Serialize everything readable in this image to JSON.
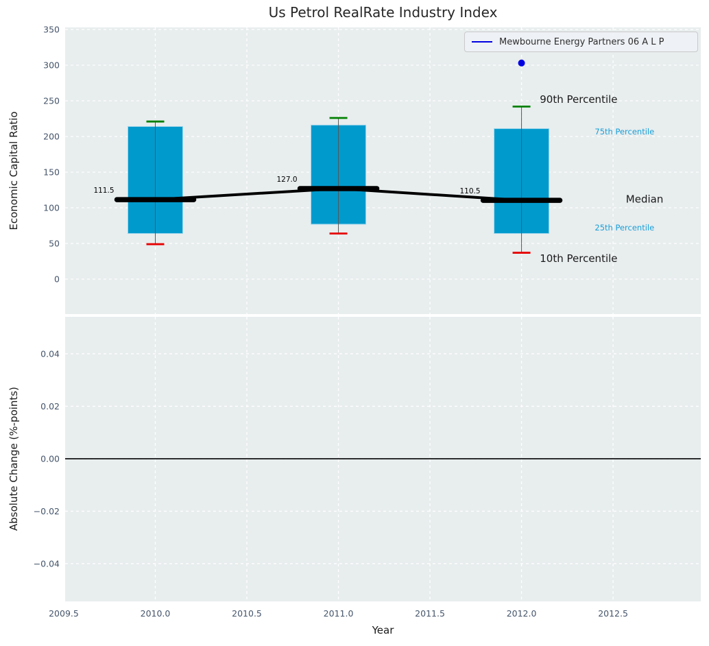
{
  "title": "Us Petrol RealRate Industry Index",
  "legend": {
    "label": "Mewbourne Energy Partners 06 A L P"
  },
  "colors": {
    "figure_bg": "#ffffff",
    "axes_bg": "#e8edee",
    "grid": "#ffffff",
    "tick_label": "#44546a",
    "text": "#262626",
    "box_fill": "#019acd",
    "box_edge": "#9fd6ea",
    "median": "#000000",
    "p90_cap": "#008000",
    "p10_cap": "#e60000",
    "whisker": "#555555",
    "series_line": "#0000e0",
    "annotation_accent": "#189fd8"
  },
  "chart_data": [
    {
      "type": "box",
      "title": "Us Petrol RealRate Industry Index",
      "ylabel": "Economic Capital Ratio",
      "ylim": [
        -49,
        352.9
      ],
      "yticks": [
        350,
        300,
        250,
        200,
        150,
        100,
        50,
        0
      ],
      "ytick_labels": [
        "350",
        "300",
        "250",
        "200",
        "150",
        "100",
        "50",
        "0"
      ],
      "xlim": [
        2009.5075,
        2012.979
      ],
      "xticks": [
        2009.5,
        2010.0,
        2010.5,
        2011.0,
        2011.5,
        2012.0,
        2012.5
      ],
      "grid": true,
      "legend_position": "upper right",
      "boxes": [
        {
          "x": 2010,
          "p10": 49,
          "q1": 64,
          "median": 111.5,
          "q3": 214,
          "p90": 221,
          "median_label": "111.5"
        },
        {
          "x": 2011,
          "p10": 64,
          "q1": 77,
          "median": 127.0,
          "q3": 216,
          "p90": 226,
          "median_label": "127.0"
        },
        {
          "x": 2012,
          "p10": 37,
          "q1": 64,
          "median": 110.5,
          "q3": 211,
          "p90": 242,
          "median_label": "110.5"
        }
      ],
      "series": [
        {
          "name": "Mewbourne Energy Partners 06 A L P",
          "points": [
            {
              "x": 2012,
              "y": 303
            }
          ]
        }
      ],
      "annotations": [
        {
          "text": "90th Percentile",
          "x": 2012.1,
          "y": 252,
          "color": "#1a1a1a",
          "size": 15
        },
        {
          "text": "75th Percentile",
          "x": 2012.4,
          "y": 207,
          "color": "#189fd8",
          "size": 11.5
        },
        {
          "text": "Median",
          "x": 2012.57,
          "y": 112.5,
          "color": "#1a1a1a",
          "size": 15
        },
        {
          "text": "25th Percentile",
          "x": 2012.4,
          "y": 72,
          "color": "#189fd8",
          "size": 11.5
        },
        {
          "text": "10th Percentile",
          "x": 2012.1,
          "y": 29,
          "color": "#1a1a1a",
          "size": 15
        }
      ]
    },
    {
      "type": "line",
      "ylabel": "Absolute Change (%-points)",
      "xlabel": "Year",
      "ylim": [
        -0.0544,
        0.0541
      ],
      "yticks": [
        0.04,
        0.02,
        0,
        -0.02,
        -0.04
      ],
      "ytick_labels": [
        "0.04",
        "0.02",
        "0.00",
        "−0.02",
        "−0.04"
      ],
      "xticks": [
        2009.5,
        2010.0,
        2010.5,
        2011.0,
        2011.5,
        2012.0,
        2012.5
      ],
      "xtick_labels": [
        "2009.5",
        "2010.0",
        "2010.5",
        "2011.0",
        "2011.5",
        "2012.0",
        "2012.5"
      ],
      "grid": true,
      "zero_line_y": 0,
      "series": []
    }
  ]
}
